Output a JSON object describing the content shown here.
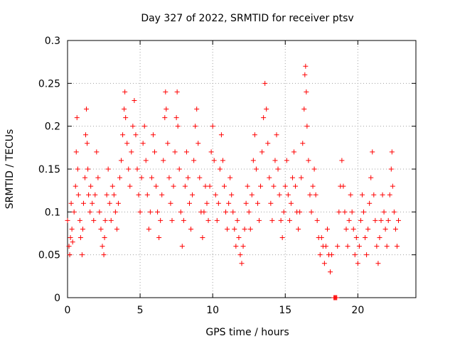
{
  "chart_data": {
    "type": "scatter",
    "title": "Day 327 of 2022, SRMTID for receiver ptsv",
    "xlabel": "GPS time / hours",
    "ylabel": "SRMTID / TECUs",
    "xlim": [
      0,
      24
    ],
    "ylim": [
      0,
      0.3
    ],
    "grid": true,
    "marker": "+",
    "color": "#ff0000",
    "x_ticks": [
      {
        "value": 0,
        "label": "0"
      },
      {
        "value": 5,
        "label": "5"
      },
      {
        "value": 10,
        "label": "10"
      },
      {
        "value": 15,
        "label": "15"
      },
      {
        "value": 20,
        "label": "20"
      }
    ],
    "y_ticks": [
      {
        "value": 0,
        "label": "0"
      },
      {
        "value": 0.05,
        "label": "0.05"
      },
      {
        "value": 0.1,
        "label": "0.1"
      },
      {
        "value": 0.15,
        "label": "0.15"
      },
      {
        "value": 0.2,
        "label": "0.2"
      },
      {
        "value": 0.25,
        "label": "0.25"
      },
      {
        "value": 0.3,
        "label": "0.3"
      }
    ],
    "series": [
      {
        "name": "SRMTID",
        "points": [
          [
            0.0,
            0.09
          ],
          [
            0.1,
            0.06
          ],
          [
            0.15,
            0.05
          ],
          [
            0.2,
            0.07
          ],
          [
            0.25,
            0.11
          ],
          [
            0.3,
            0.08
          ],
          [
            0.35,
            0.065
          ],
          [
            0.45,
            0.1
          ],
          [
            0.55,
            0.13
          ],
          [
            0.6,
            0.17
          ],
          [
            0.65,
            0.21
          ],
          [
            0.7,
            0.15
          ],
          [
            0.75,
            0.12
          ],
          [
            0.85,
            0.09
          ],
          [
            0.9,
            0.07
          ],
          [
            1.0,
            0.05
          ],
          [
            1.05,
            0.08
          ],
          [
            1.1,
            0.11
          ],
          [
            1.2,
            0.14
          ],
          [
            1.25,
            0.19
          ],
          [
            1.3,
            0.22
          ],
          [
            1.35,
            0.18
          ],
          [
            1.4,
            0.15
          ],
          [
            1.45,
            0.12
          ],
          [
            1.55,
            0.1
          ],
          [
            1.6,
            0.13
          ],
          [
            1.7,
            0.11
          ],
          [
            1.8,
            0.09
          ],
          [
            1.9,
            0.12
          ],
          [
            2.0,
            0.17
          ],
          [
            2.1,
            0.14
          ],
          [
            2.2,
            0.1
          ],
          [
            2.3,
            0.08
          ],
          [
            2.4,
            0.06
          ],
          [
            2.5,
            0.05
          ],
          [
            2.55,
            0.07
          ],
          [
            2.6,
            0.09
          ],
          [
            2.7,
            0.12
          ],
          [
            2.8,
            0.15
          ],
          [
            2.9,
            0.11
          ],
          [
            3.0,
            0.09
          ],
          [
            3.1,
            0.13
          ],
          [
            3.2,
            0.12
          ],
          [
            3.3,
            0.1
          ],
          [
            3.4,
            0.08
          ],
          [
            3.5,
            0.11
          ],
          [
            3.6,
            0.14
          ],
          [
            3.7,
            0.16
          ],
          [
            3.8,
            0.19
          ],
          [
            3.9,
            0.22
          ],
          [
            3.95,
            0.24
          ],
          [
            4.0,
            0.21
          ],
          [
            4.1,
            0.18
          ],
          [
            4.2,
            0.15
          ],
          [
            4.3,
            0.13
          ],
          [
            4.4,
            0.17
          ],
          [
            4.5,
            0.2
          ],
          [
            4.6,
            0.23
          ],
          [
            4.7,
            0.19
          ],
          [
            4.8,
            0.15
          ],
          [
            4.9,
            0.12
          ],
          [
            5.0,
            0.1
          ],
          [
            5.1,
            0.14
          ],
          [
            5.2,
            0.18
          ],
          [
            5.3,
            0.2
          ],
          [
            5.4,
            0.16
          ],
          [
            5.5,
            0.12
          ],
          [
            5.6,
            0.08
          ],
          [
            5.7,
            0.1
          ],
          [
            5.8,
            0.14
          ],
          [
            5.9,
            0.19
          ],
          [
            6.0,
            0.17
          ],
          [
            6.1,
            0.13
          ],
          [
            6.2,
            0.1
          ],
          [
            6.3,
            0.07
          ],
          [
            6.4,
            0.09
          ],
          [
            6.5,
            0.12
          ],
          [
            6.6,
            0.16
          ],
          [
            6.7,
            0.21
          ],
          [
            6.75,
            0.24
          ],
          [
            6.8,
            0.22
          ],
          [
            6.9,
            0.18
          ],
          [
            7.0,
            0.14
          ],
          [
            7.1,
            0.11
          ],
          [
            7.2,
            0.09
          ],
          [
            7.3,
            0.13
          ],
          [
            7.4,
            0.17
          ],
          [
            7.5,
            0.21
          ],
          [
            7.55,
            0.24
          ],
          [
            7.6,
            0.2
          ],
          [
            7.7,
            0.15
          ],
          [
            7.8,
            0.1
          ],
          [
            7.9,
            0.06
          ],
          [
            8.0,
            0.09
          ],
          [
            8.1,
            0.13
          ],
          [
            8.2,
            0.17
          ],
          [
            8.3,
            0.14
          ],
          [
            8.4,
            0.11
          ],
          [
            8.5,
            0.08
          ],
          [
            8.6,
            0.12
          ],
          [
            8.7,
            0.16
          ],
          [
            8.8,
            0.2
          ],
          [
            8.9,
            0.22
          ],
          [
            9.0,
            0.18
          ],
          [
            9.1,
            0.14
          ],
          [
            9.2,
            0.1
          ],
          [
            9.3,
            0.07
          ],
          [
            9.4,
            0.1
          ],
          [
            9.5,
            0.13
          ],
          [
            9.6,
            0.11
          ],
          [
            9.7,
            0.09
          ],
          [
            9.8,
            0.13
          ],
          [
            9.9,
            0.17
          ],
          [
            10.0,
            0.2
          ],
          [
            10.1,
            0.16
          ],
          [
            10.2,
            0.12
          ],
          [
            10.3,
            0.09
          ],
          [
            10.4,
            0.11
          ],
          [
            10.5,
            0.15
          ],
          [
            10.6,
            0.19
          ],
          [
            10.7,
            0.16
          ],
          [
            10.8,
            0.13
          ],
          [
            10.9,
            0.1
          ],
          [
            11.0,
            0.08
          ],
          [
            11.1,
            0.11
          ],
          [
            11.2,
            0.14
          ],
          [
            11.3,
            0.12
          ],
          [
            11.4,
            0.1
          ],
          [
            11.5,
            0.08
          ],
          [
            11.6,
            0.06
          ],
          [
            11.7,
            0.09
          ],
          [
            11.8,
            0.07
          ],
          [
            11.9,
            0.05
          ],
          [
            12.0,
            0.04
          ],
          [
            12.1,
            0.06
          ],
          [
            12.2,
            0.08
          ],
          [
            12.3,
            0.11
          ],
          [
            12.4,
            0.13
          ],
          [
            12.5,
            0.1
          ],
          [
            12.6,
            0.08
          ],
          [
            12.7,
            0.12
          ],
          [
            12.8,
            0.16
          ],
          [
            12.9,
            0.19
          ],
          [
            13.0,
            0.15
          ],
          [
            13.1,
            0.11
          ],
          [
            13.2,
            0.09
          ],
          [
            13.3,
            0.13
          ],
          [
            13.4,
            0.17
          ],
          [
            13.5,
            0.21
          ],
          [
            13.6,
            0.25
          ],
          [
            13.7,
            0.22
          ],
          [
            13.8,
            0.18
          ],
          [
            13.9,
            0.14
          ],
          [
            14.0,
            0.11
          ],
          [
            14.1,
            0.09
          ],
          [
            14.2,
            0.13
          ],
          [
            14.3,
            0.16
          ],
          [
            14.4,
            0.19
          ],
          [
            14.5,
            0.15
          ],
          [
            14.6,
            0.12
          ],
          [
            14.7,
            0.09
          ],
          [
            14.8,
            0.07
          ],
          [
            14.9,
            0.1
          ],
          [
            15.0,
            0.13
          ],
          [
            15.1,
            0.16
          ],
          [
            15.2,
            0.12
          ],
          [
            15.3,
            0.09
          ],
          [
            15.4,
            0.11
          ],
          [
            15.5,
            0.14
          ],
          [
            15.6,
            0.17
          ],
          [
            15.7,
            0.13
          ],
          [
            15.8,
            0.1
          ],
          [
            15.9,
            0.08
          ],
          [
            16.0,
            0.1
          ],
          [
            16.1,
            0.14
          ],
          [
            16.2,
            0.18
          ],
          [
            16.3,
            0.22
          ],
          [
            16.35,
            0.26
          ],
          [
            16.4,
            0.27
          ],
          [
            16.45,
            0.24
          ],
          [
            16.5,
            0.2
          ],
          [
            16.6,
            0.16
          ],
          [
            16.7,
            0.12
          ],
          [
            16.8,
            0.1
          ],
          [
            16.9,
            0.13
          ],
          [
            17.0,
            0.15
          ],
          [
            17.1,
            0.12
          ],
          [
            17.2,
            0.09
          ],
          [
            17.3,
            0.07
          ],
          [
            17.4,
            0.05
          ],
          [
            17.5,
            0.07
          ],
          [
            17.6,
            0.06
          ],
          [
            17.7,
            0.04
          ],
          [
            17.8,
            0.06
          ],
          [
            17.9,
            0.08
          ],
          [
            18.0,
            0.05
          ],
          [
            18.1,
            0.03
          ],
          [
            18.2,
            0.05
          ],
          [
            18.35,
            0.0
          ],
          [
            18.4,
            0.0
          ],
          [
            18.45,
            0.0
          ],
          [
            18.5,
            0.0
          ],
          [
            18.55,
            0.0
          ],
          [
            18.6,
            0.06
          ],
          [
            18.7,
            0.1
          ],
          [
            18.8,
            0.13
          ],
          [
            18.9,
            0.16
          ],
          [
            19.0,
            0.13
          ],
          [
            19.1,
            0.1
          ],
          [
            19.2,
            0.08
          ],
          [
            19.3,
            0.06
          ],
          [
            19.4,
            0.09
          ],
          [
            19.5,
            0.12
          ],
          [
            19.6,
            0.1
          ],
          [
            19.7,
            0.08
          ],
          [
            19.8,
            0.05
          ],
          [
            19.9,
            0.07
          ],
          [
            20.0,
            0.04
          ],
          [
            20.1,
            0.06
          ],
          [
            20.2,
            0.09
          ],
          [
            20.3,
            0.12
          ],
          [
            20.4,
            0.1
          ],
          [
            20.5,
            0.07
          ],
          [
            20.6,
            0.05
          ],
          [
            20.7,
            0.08
          ],
          [
            20.8,
            0.11
          ],
          [
            20.9,
            0.14
          ],
          [
            21.0,
            0.17
          ],
          [
            21.1,
            0.12
          ],
          [
            21.2,
            0.09
          ],
          [
            21.3,
            0.06
          ],
          [
            21.4,
            0.04
          ],
          [
            21.5,
            0.07
          ],
          [
            21.6,
            0.09
          ],
          [
            21.7,
            0.12
          ],
          [
            21.8,
            0.1
          ],
          [
            21.9,
            0.08
          ],
          [
            22.0,
            0.06
          ],
          [
            22.1,
            0.09
          ],
          [
            22.2,
            0.12
          ],
          [
            22.3,
            0.15
          ],
          [
            22.35,
            0.17
          ],
          [
            22.4,
            0.13
          ],
          [
            22.5,
            0.1
          ],
          [
            22.6,
            0.08
          ],
          [
            22.7,
            0.06
          ],
          [
            22.8,
            0.09
          ]
        ]
      }
    ]
  }
}
